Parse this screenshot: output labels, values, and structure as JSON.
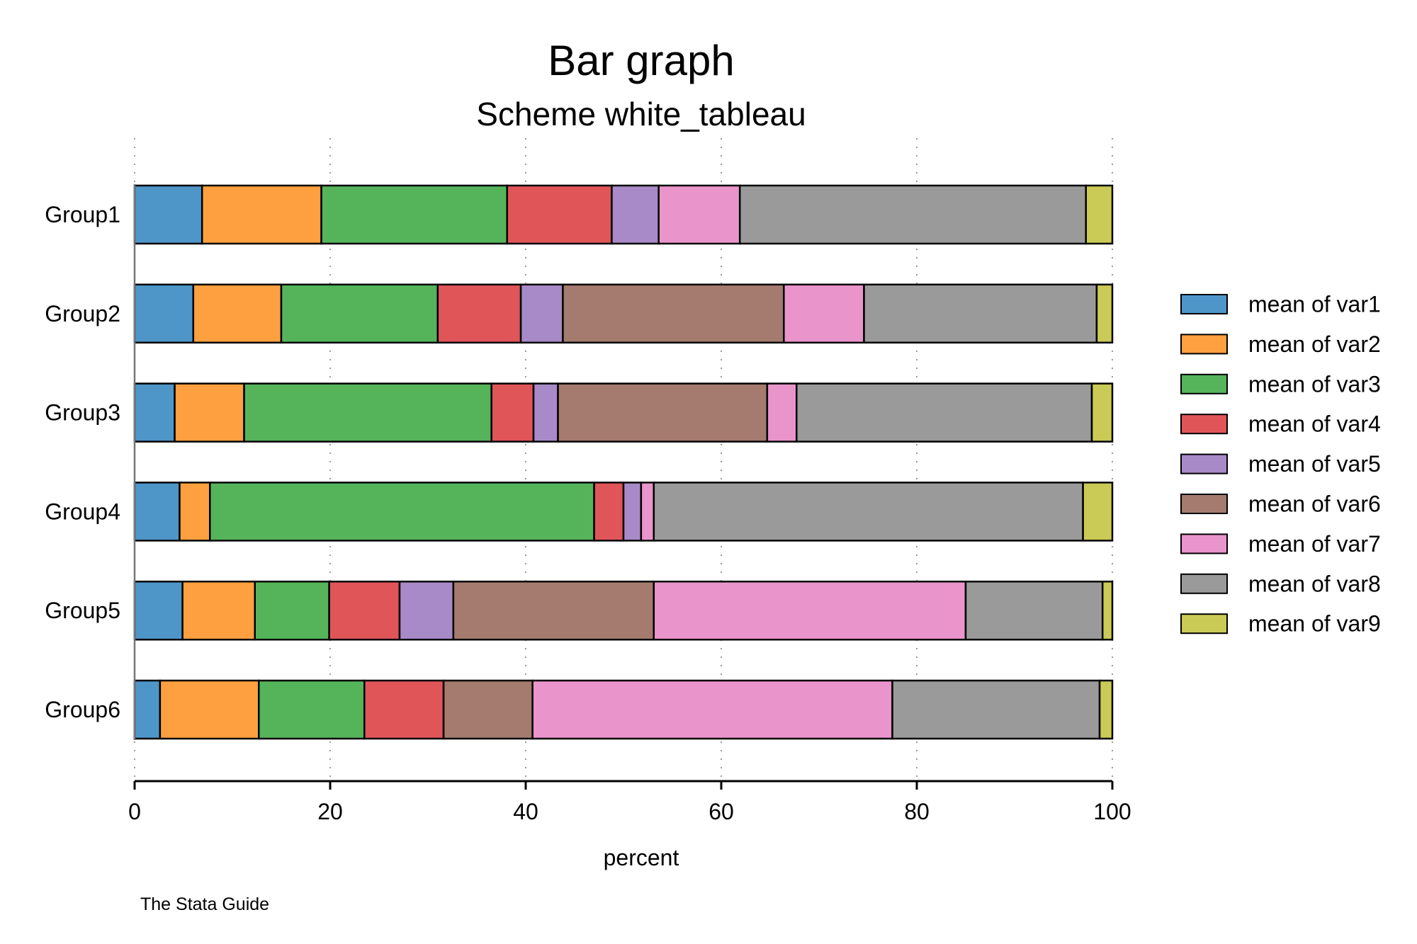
{
  "chart_data": {
    "type": "bar",
    "orientation": "horizontal",
    "stacked": true,
    "title": "Bar graph",
    "subtitle": "Scheme white_tableau",
    "xlabel": "percent",
    "ylabel": "",
    "note": "The Stata Guide",
    "xlim": [
      0,
      100
    ],
    "xticks": [
      "0",
      "20",
      "40",
      "60",
      "80",
      "100"
    ],
    "grid": true,
    "legend_position": "right",
    "categories": [
      "Group1",
      "Group2",
      "Group3",
      "Group4",
      "Group5",
      "Group6"
    ],
    "series": [
      {
        "name": "mean of var1",
        "color": "#4E96C8",
        "values": [
          6.9,
          6.0,
          4.1,
          4.6,
          4.9,
          2.6
        ]
      },
      {
        "name": "mean of var2",
        "color": "#FFA040",
        "values": [
          12.2,
          9.0,
          7.1,
          3.1,
          7.4,
          10.1
        ]
      },
      {
        "name": "mean of var3",
        "color": "#55B45A",
        "values": [
          19.0,
          16.0,
          25.3,
          39.3,
          7.6,
          10.8
        ]
      },
      {
        "name": "mean of var4",
        "color": "#E05558",
        "values": [
          10.7,
          8.5,
          4.3,
          3.0,
          7.2,
          8.1
        ]
      },
      {
        "name": "mean of var5",
        "color": "#A88AC8",
        "values": [
          4.8,
          4.3,
          2.5,
          1.8,
          5.5,
          0.0
        ]
      },
      {
        "name": "mean of var6",
        "color": "#A47B6E",
        "values": [
          0.0,
          22.6,
          21.4,
          0.0,
          20.5,
          9.1
        ]
      },
      {
        "name": "mean of var7",
        "color": "#EA94CC",
        "values": [
          8.3,
          8.2,
          3.0,
          1.3,
          31.9,
          36.8
        ]
      },
      {
        "name": "mean of var8",
        "color": "#9A9A9A",
        "values": [
          35.4,
          23.8,
          30.2,
          43.9,
          14.0,
          21.2
        ]
      },
      {
        "name": "mean of var9",
        "color": "#CACA56",
        "values": [
          2.7,
          1.6,
          2.1,
          3.0,
          1.0,
          1.3
        ]
      }
    ]
  }
}
